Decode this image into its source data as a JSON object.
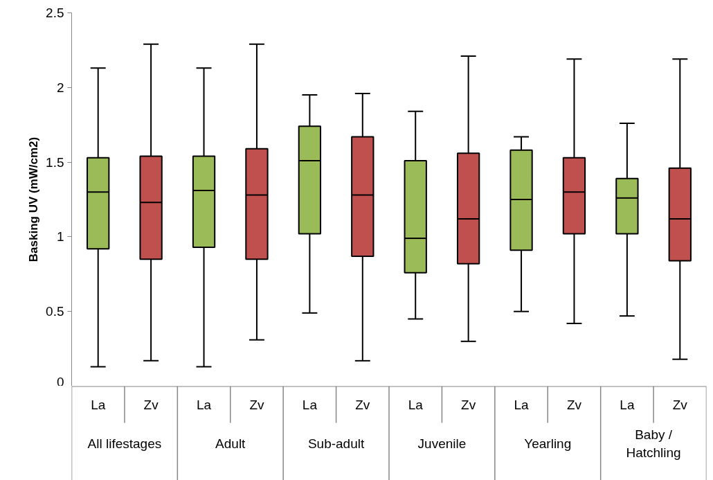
{
  "chart_data": {
    "type": "box",
    "ylabel": "Basking UV (mW/cm2)",
    "categories": [
      "All lifestages",
      "Adult",
      "Sub-adult",
      "Juvenile",
      "Yearling",
      "Baby / Hatchling"
    ],
    "ylim": [
      0,
      2.5
    ],
    "yticks": [
      0,
      0.5,
      1,
      1.5,
      2,
      2.5
    ],
    "grid": false,
    "series": [
      {
        "name": "La",
        "color": "#9bbb59",
        "boxes": [
          {
            "low": 0.13,
            "q1": 0.92,
            "median": 1.3,
            "q3": 1.53,
            "high": 2.13
          },
          {
            "low": 0.13,
            "q1": 0.93,
            "median": 1.31,
            "q3": 1.54,
            "high": 2.13
          },
          {
            "low": 0.49,
            "q1": 1.02,
            "median": 1.51,
            "q3": 1.74,
            "high": 1.95
          },
          {
            "low": 0.45,
            "q1": 0.76,
            "median": 0.99,
            "q3": 1.51,
            "high": 1.84
          },
          {
            "low": 0.5,
            "q1": 0.91,
            "median": 1.25,
            "q3": 1.58,
            "high": 1.67
          },
          {
            "low": 0.47,
            "q1": 1.02,
            "median": 1.26,
            "q3": 1.39,
            "high": 1.76
          }
        ]
      },
      {
        "name": "Zv",
        "color": "#c0504d",
        "boxes": [
          {
            "low": 0.17,
            "q1": 0.85,
            "median": 1.23,
            "q3": 1.54,
            "high": 2.29
          },
          {
            "low": 0.31,
            "q1": 0.85,
            "median": 1.28,
            "q3": 1.59,
            "high": 2.29
          },
          {
            "low": 0.17,
            "q1": 0.87,
            "median": 1.28,
            "q3": 1.67,
            "high": 1.96
          },
          {
            "low": 0.3,
            "q1": 0.82,
            "median": 1.12,
            "q3": 1.56,
            "high": 2.21
          },
          {
            "low": 0.42,
            "q1": 1.02,
            "median": 1.3,
            "q3": 1.53,
            "high": 2.19
          },
          {
            "low": 0.18,
            "q1": 0.84,
            "median": 1.12,
            "q3": 1.46,
            "high": 2.19
          }
        ]
      }
    ]
  }
}
